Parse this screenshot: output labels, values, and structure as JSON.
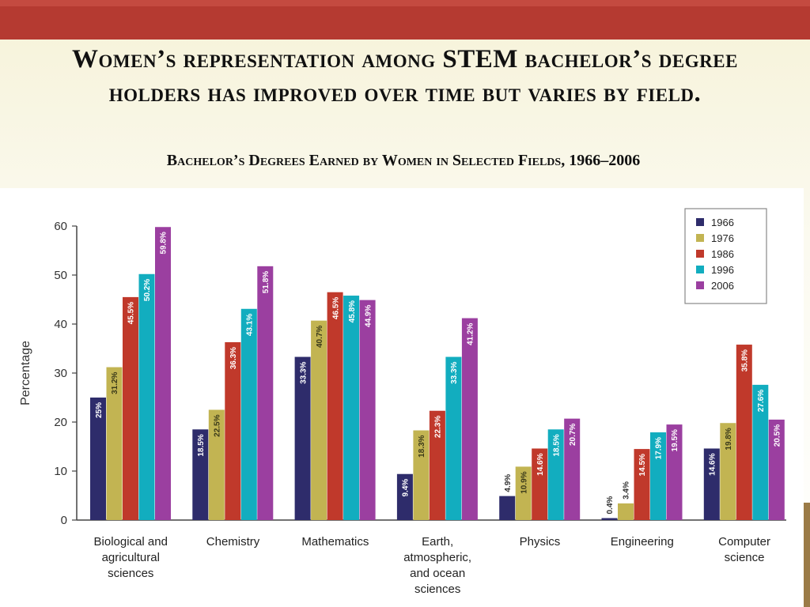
{
  "slide": {
    "title": "Women’s representation among STEM bachelor’s degree holders has improved over time but varies by field."
  },
  "chart_data": {
    "type": "bar",
    "title": "Bachelor’s Degrees Earned by Women in Selected Fields, 1966–2006",
    "ylabel": "Percentage",
    "ylim": [
      0,
      60
    ],
    "yticks": [
      0,
      10,
      20,
      30,
      40,
      50,
      60
    ],
    "grid": false,
    "legend_position": "top-right",
    "categories": [
      [
        "Biological and",
        "agricultural",
        "sciences"
      ],
      [
        "Chemistry"
      ],
      [
        "Mathematics"
      ],
      [
        "Earth,",
        "atmospheric,",
        "and ocean",
        "sciences"
      ],
      [
        "Physics"
      ],
      [
        "Engineering"
      ],
      [
        "Computer",
        "science"
      ]
    ],
    "series": [
      {
        "name": "1966",
        "color": "#2e2c6b",
        "values": [
          25,
          18.5,
          33.3,
          9.4,
          4.9,
          0.4,
          14.6
        ],
        "labels": [
          "25%",
          "18.5%",
          "33.3%",
          "9.4%",
          "4.9%",
          "0.4%",
          "14.6%"
        ]
      },
      {
        "name": "1976",
        "color": "#c2b452",
        "values": [
          31.2,
          22.5,
          40.7,
          18.3,
          10.9,
          3.4,
          19.8
        ],
        "labels": [
          "31.2%",
          "22.5%",
          "40.7%",
          "18.3%",
          "10.9%",
          "3.4%",
          "19.8%"
        ]
      },
      {
        "name": "1986",
        "color": "#c0392b",
        "values": [
          45.5,
          36.3,
          46.5,
          22.3,
          14.6,
          14.5,
          35.8
        ],
        "labels": [
          "45.5%",
          "36.3%",
          "46.5%",
          "22.3%",
          "14.6%",
          "14.5%",
          "35.8%"
        ]
      },
      {
        "name": "1996",
        "color": "#12adbf",
        "values": [
          50.2,
          43.1,
          45.8,
          33.3,
          18.5,
          17.9,
          27.6
        ],
        "labels": [
          "50.2%",
          "43.1%",
          "45.8%",
          "33.3%",
          "18.5%",
          "17.9%",
          "27.6%"
        ]
      },
      {
        "name": "2006",
        "color": "#9b3fa0",
        "values": [
          59.8,
          51.8,
          44.9,
          41.2,
          20.7,
          19.5,
          20.5
        ],
        "labels": [
          "59.8%",
          "51.8%",
          "44.9%",
          "41.2%",
          "20.7%",
          "19.5%",
          "20.5%"
        ]
      }
    ]
  }
}
